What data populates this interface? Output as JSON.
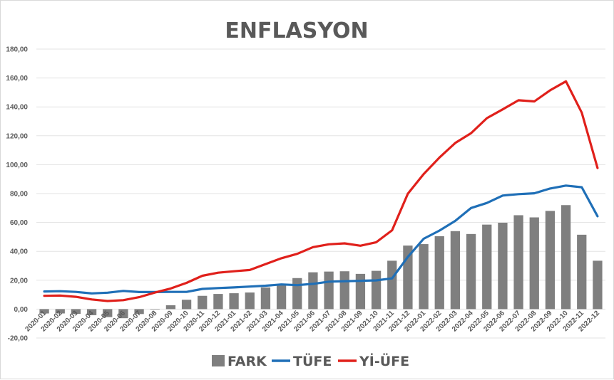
{
  "chart_data": {
    "type": "bar+line",
    "title": "ENFLASYON",
    "categories": [
      "2020-01",
      "2020-02",
      "2020-03",
      "2020-04",
      "2020-05",
      "2020-06",
      "2020-07",
      "2020-08",
      "2020-09",
      "2020-10",
      "2020-11",
      "2020-12",
      "2021-01",
      "2021-02",
      "2021-03",
      "2021-04",
      "2021-05",
      "2021-06",
      "2021-07",
      "2021-08",
      "2021-09",
      "2021-10",
      "2021-11",
      "2021-12",
      "2022-01",
      "2022-02",
      "2022-03",
      "2022-04",
      "2022-05",
      "2022-06",
      "2022-07",
      "2022-08",
      "2022-09",
      "2022-10",
      "2022-11",
      "2022-12"
    ],
    "ylim": [
      -20,
      180
    ],
    "yticks": [
      "-20,00",
      "0,00",
      "20,00",
      "40,00",
      "60,00",
      "80,00",
      "100,00",
      "120,00",
      "140,00",
      "160,00",
      "180,00"
    ],
    "grid": true,
    "legend_position": "bottom",
    "series": [
      {
        "name": "FARK",
        "type": "bar",
        "color": "#7f7f7f",
        "values": [
          -3.0,
          -3.0,
          -3.3,
          -4.2,
          -5.5,
          -6.3,
          -3.4,
          0.1,
          2.7,
          6.5,
          9.2,
          10.5,
          11.0,
          11.5,
          15.0,
          17.0,
          21.5,
          25.5,
          26.0,
          26.2,
          24.4,
          26.5,
          33.5,
          44.0,
          45.0,
          50.5,
          54.0,
          52.0,
          58.5,
          59.8,
          65.0,
          63.5,
          68.0,
          72.0,
          51.5,
          33.5
        ]
      },
      {
        "name": "TÜFE",
        "type": "line",
        "color": "#1f6fb7",
        "values": [
          12.2,
          12.4,
          11.9,
          10.9,
          11.4,
          12.6,
          11.8,
          11.8,
          11.9,
          11.9,
          14.0,
          14.6,
          15.0,
          15.6,
          16.2,
          17.1,
          16.6,
          17.5,
          19.0,
          19.3,
          19.6,
          19.9,
          21.3,
          36.1,
          48.7,
          54.4,
          61.1,
          70.0,
          73.5,
          78.6,
          79.6,
          80.2,
          83.5,
          85.5,
          84.4,
          64.3
        ]
      },
      {
        "name": "Yİ-ÜFE",
        "type": "line",
        "color": "#e0201b",
        "values": [
          9.2,
          9.4,
          8.5,
          6.7,
          5.6,
          6.2,
          8.3,
          11.5,
          14.3,
          18.2,
          23.1,
          25.2,
          26.2,
          27.1,
          31.2,
          35.2,
          38.3,
          42.9,
          44.9,
          45.5,
          43.9,
          46.3,
          54.6,
          79.9,
          93.5,
          105.0,
          115.0,
          121.8,
          132.2,
          138.3,
          144.6,
          143.8,
          151.5,
          157.7,
          136.0,
          97.7
        ]
      }
    ]
  }
}
